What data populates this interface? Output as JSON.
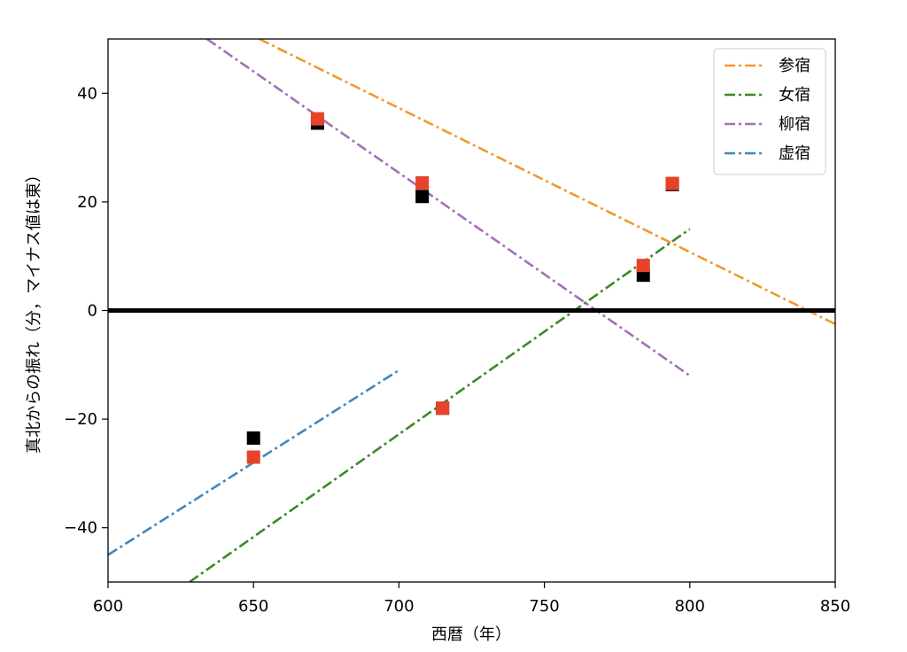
{
  "chart_data": {
    "type": "line",
    "xlabel": "西暦（年）",
    "ylabel": "真北からの振れ（分，マイナス値は東）",
    "xlim": [
      600,
      850
    ],
    "ylim": [
      -50,
      50
    ],
    "xticks": [
      600,
      650,
      700,
      750,
      800,
      850
    ],
    "yticks": [
      -40,
      -20,
      0,
      20,
      40
    ],
    "xtick_labels": [
      "600",
      "650",
      "700",
      "750",
      "800",
      "850"
    ],
    "ytick_labels": [
      "−40",
      "−20",
      "0",
      "20",
      "40"
    ],
    "grid": false,
    "legend_position": "top-right",
    "reference_line": {
      "y": 0,
      "color": "#000000"
    },
    "series": [
      {
        "name": "参宿",
        "color": "#f0992e",
        "style": "dash-dot",
        "x": [
          652,
          850
        ],
        "y": [
          50,
          -2.5
        ]
      },
      {
        "name": "女宿",
        "color": "#3a8a25",
        "style": "dash-dot",
        "x": [
          628,
          800
        ],
        "y": [
          -50,
          15
        ]
      },
      {
        "name": "柳宿",
        "color": "#a46fb8",
        "style": "dash-dot",
        "x": [
          634,
          800
        ],
        "y": [
          50,
          -12
        ]
      },
      {
        "name": "虚宿",
        "color": "#3f88bf",
        "style": "dash-dot",
        "x": [
          600,
          700
        ],
        "y": [
          -45,
          -11
        ]
      }
    ],
    "scatter_series": [
      {
        "color": "#000000",
        "x": [
          650,
          672,
          708,
          715,
          784,
          794
        ],
        "y": [
          -23.5,
          34.5,
          21,
          -18,
          6.5,
          23.2
        ]
      },
      {
        "color": "#e8422a",
        "x": [
          650,
          672,
          708,
          715,
          784,
          794
        ],
        "y": [
          -27,
          35.3,
          23.5,
          -18,
          8.3,
          23.4
        ]
      }
    ]
  }
}
